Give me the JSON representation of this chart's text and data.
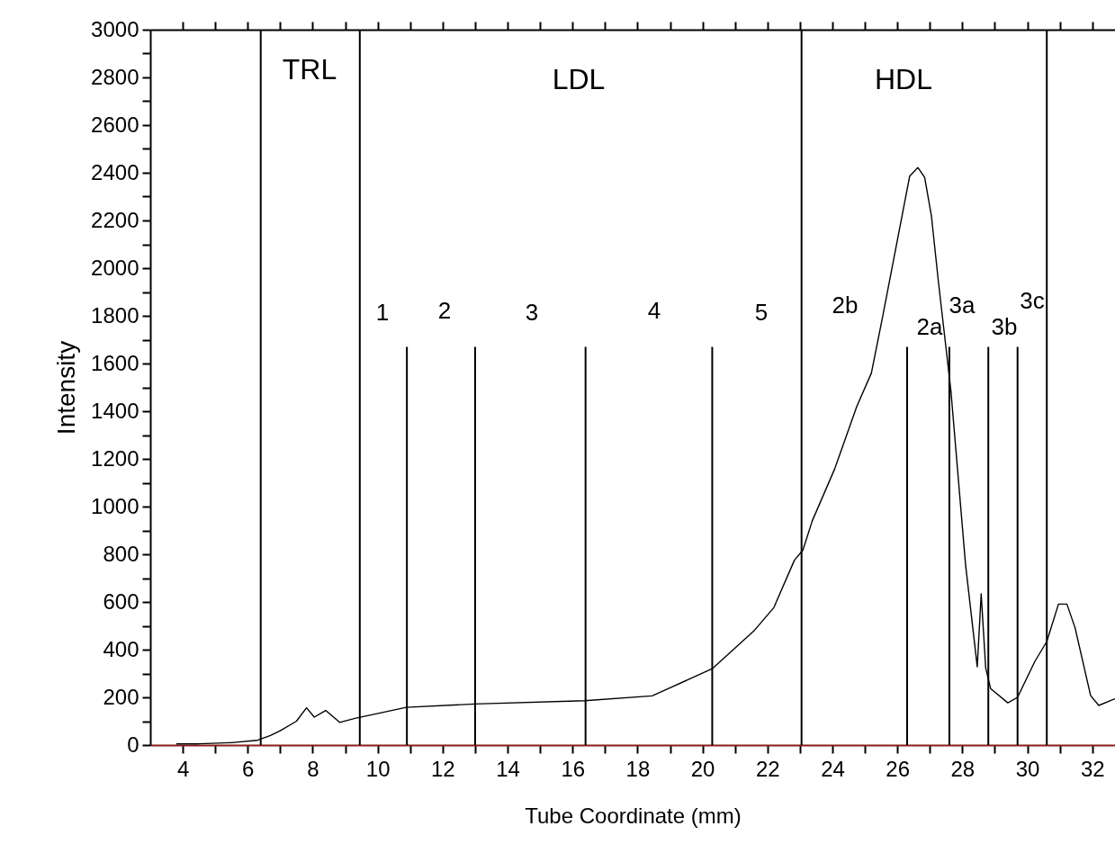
{
  "chart_data": {
    "type": "line",
    "xlabel": "Tube Coordinate (mm)",
    "ylabel": "Intensity",
    "xlim": [
      3,
      32.7
    ],
    "ylim": [
      0,
      3000
    ],
    "xticks": [
      4,
      {
        "value": 5,
        "label": null
      },
      6,
      {
        "value": 7,
        "label": null
      },
      8,
      {
        "value": 9,
        "label": null
      },
      10,
      {
        "value": 11,
        "label": null
      },
      12,
      {
        "value": 13,
        "label": null
      },
      14,
      {
        "value": 15,
        "label": null
      },
      16,
      {
        "value": 17,
        "label": null
      },
      18,
      {
        "value": 19,
        "label": null
      },
      20,
      {
        "value": 21,
        "label": null
      },
      22,
      {
        "value": 23,
        "label": null
      },
      24,
      {
        "value": 25,
        "label": null
      },
      26,
      {
        "value": 27,
        "label": null
      },
      28,
      {
        "value": 29,
        "label": null
      },
      30,
      {
        "value": 31,
        "label": null
      },
      32
    ],
    "yticks": [
      0,
      {
        "value": 100,
        "label": null
      },
      200,
      {
        "value": 300,
        "label": null
      },
      400,
      {
        "value": 500,
        "label": null
      },
      600,
      {
        "value": 700,
        "label": null
      },
      800,
      {
        "value": 900,
        "label": null
      },
      1000,
      {
        "value": 1100,
        "label": null
      },
      1200,
      {
        "value": 1300,
        "label": null
      },
      1400,
      {
        "value": 1500,
        "label": null
      },
      1600,
      {
        "value": 1700,
        "label": null
      },
      1800,
      {
        "value": 1900,
        "label": null
      },
      2000,
      {
        "value": 2100,
        "label": null
      },
      2200,
      {
        "value": 2300,
        "label": null
      },
      2400,
      {
        "value": 2500,
        "label": null
      },
      2600,
      {
        "value": 2700,
        "label": null
      },
      2800,
      {
        "value": 2900,
        "label": null
      },
      3000
    ],
    "series": [
      {
        "color": "#000000",
        "x": [
          3.8,
          4.5,
          5.5,
          6.3,
          6.7,
          7.0,
          7.5,
          7.81,
          8.05,
          8.4,
          8.83,
          9.3,
          10.88,
          13.0,
          16.37,
          18.45,
          20.3,
          21.58,
          22.2,
          22.83,
          23.09,
          23.38,
          24.07,
          24.75,
          25.2,
          25.54,
          26.22,
          26.38,
          26.63,
          26.84,
          27.05,
          27.26,
          27.65,
          28.1,
          28.46,
          28.58,
          28.72,
          28.87,
          29.4,
          29.7,
          30.23,
          30.6,
          30.96,
          31.22,
          31.47,
          31.95,
          32.2,
          32.7
        ],
        "values": [
          5,
          5,
          10,
          20,
          40,
          60,
          100,
          156,
          117,
          145,
          95,
          112,
          158,
          172,
          186,
          206,
          320,
          478,
          577,
          775,
          817,
          940,
          1158,
          1420,
          1560,
          1792,
          2273,
          2386,
          2422,
          2381,
          2217,
          1947,
          1483,
          755,
          328,
          634,
          322,
          237,
          177,
          200,
          350,
          434,
          591,
          591,
          492,
          207,
          166,
          194
        ]
      },
      {
        "color": "#000000",
        "x": [
          10.9,
          10.9
        ],
        "values": [
          0,
          1670
        ]
      },
      {
        "color": "#000000",
        "x": [
          13.0,
          13.0
        ],
        "values": [
          0,
          1670
        ]
      },
      {
        "color": "#000000",
        "x": [
          16.4,
          16.4
        ],
        "values": [
          0,
          1670
        ]
      },
      {
        "color": "#000000",
        "x": [
          20.3,
          20.3
        ],
        "values": [
          0,
          1670
        ]
      },
      {
        "color": "#000000",
        "x": [
          26.3,
          26.3
        ],
        "values": [
          0,
          1670
        ]
      },
      {
        "color": "#000000",
        "x": [
          27.6,
          27.6
        ],
        "values": [
          0,
          1670
        ]
      },
      {
        "color": "#000000",
        "x": [
          28.8,
          28.8
        ],
        "values": [
          0,
          1670
        ]
      },
      {
        "color": "#000000",
        "x": [
          29.7,
          29.7
        ],
        "values": [
          0,
          1670
        ]
      }
    ],
    "ref_lines": [
      {
        "axis": "x",
        "value": 6.4,
        "color": "#000000"
      },
      {
        "axis": "x",
        "value": 9.45,
        "color": "#000000"
      },
      {
        "axis": "x",
        "value": 23.05,
        "color": "#000000"
      },
      {
        "axis": "x",
        "value": 30.6,
        "color": "#000000"
      }
    ],
    "annotations": [
      "TRL",
      "LDL",
      "HDL",
      "1",
      "2",
      "3",
      "4",
      "5",
      "2b",
      "2a",
      "3a",
      "3b",
      "3c"
    ]
  }
}
